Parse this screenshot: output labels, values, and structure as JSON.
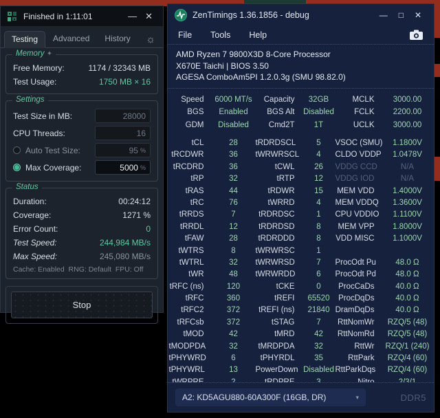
{
  "desktop": {
    "top_strip_color": "#932d1e",
    "accent_sliver_color": "#1c3b33"
  },
  "tm5": {
    "title": "Finished in 1:11:01",
    "controls": {
      "minimize": "—",
      "close": "✕"
    },
    "tabs": [
      "Testing",
      "Advanced",
      "History"
    ],
    "theme_icon": "☼",
    "memory": {
      "title": "Memory",
      "sparkle": "✦",
      "free_label": "Free Memory:",
      "free_value": "1174 / 32343 MB",
      "usage_label": "Test Usage:",
      "usage_value": "1750 MB × 16"
    },
    "settings": {
      "title": "Settings",
      "test_size_label": "Test Size in MB:",
      "test_size_value": "28000",
      "cpu_threads_label": "CPU Threads:",
      "cpu_threads_value": "16",
      "auto_label": "Auto Test Size:",
      "auto_value": "95",
      "auto_suffix": "%",
      "auto_selected": false,
      "max_label": "Max Coverage:",
      "max_value": "5000",
      "max_suffix": "%",
      "max_selected": true
    },
    "status": {
      "title": "Status",
      "duration_label": "Duration:",
      "duration_value": "00:24:12",
      "coverage_label": "Coverage:",
      "coverage_value": "1271 %",
      "errors_label": "Error Count:",
      "errors_value": "0",
      "test_speed_label": "Test Speed:",
      "test_speed_value": "244,984 MB/s",
      "max_speed_label": "Max Speed:",
      "max_speed_value": "245,080 MB/s",
      "footnote": "Cache: Enabled  RNG: Default  FPU: Off"
    },
    "stop_label": "Stop"
  },
  "zentimings": {
    "title": "ZenTimings 1.36.1856 - debug",
    "controls": {
      "minimize": "—",
      "maximize": "□",
      "close": "✕"
    },
    "menu": [
      "File",
      "Tools",
      "Help"
    ],
    "cpu_info": [
      "AMD Ryzen 7 9800X3D 8-Core Processor",
      "X670E Taichi | BIOS 3.50",
      "AGESA ComboAm5PI 1.2.0.3g (SMU 98.82.0)"
    ],
    "top_rows": [
      {
        "cells": [
          [
            "Speed",
            "6000 MT/s"
          ],
          [
            "Capacity",
            "32GB"
          ],
          [
            "MCLK",
            "3000.00"
          ]
        ]
      },
      {
        "cells": [
          [
            "BGS",
            "Enabled"
          ],
          [
            "BGS Alt",
            "Disabled"
          ],
          [
            "FCLK",
            "2200.00"
          ]
        ]
      },
      {
        "cells": [
          [
            "GDM",
            "Disabled"
          ],
          [
            "Cmd2T",
            "1T"
          ],
          [
            "UCLK",
            "3000.00"
          ]
        ]
      }
    ],
    "timing_rows": [
      {
        "cells": [
          [
            "tCL",
            "28"
          ],
          [
            "tRDRDSCL",
            "5"
          ],
          [
            "VSOC (SMU)",
            "1.1800V"
          ]
        ]
      },
      {
        "cells": [
          [
            "tRCDWR",
            "36"
          ],
          [
            "tWRWRSCL",
            "4"
          ],
          [
            "CLDO VDDP",
            "1.0478V"
          ]
        ]
      },
      {
        "cells": [
          [
            "tRCDRD",
            "36"
          ],
          [
            "tCWL",
            "26"
          ],
          [
            "VDDG CCD",
            "N/A",
            "dim"
          ]
        ]
      },
      {
        "cells": [
          [
            "tRP",
            "32"
          ],
          [
            "tRTP",
            "12"
          ],
          [
            "VDDG IOD",
            "N/A",
            "dim"
          ]
        ]
      },
      {
        "cells": [
          [
            "tRAS",
            "44"
          ],
          [
            "tRDWR",
            "15"
          ],
          [
            "MEM VDD",
            "1.4000V"
          ]
        ]
      },
      {
        "cells": [
          [
            "tRC",
            "76"
          ],
          [
            "tWRRD",
            "4"
          ],
          [
            "MEM VDDQ",
            "1.3600V"
          ]
        ]
      },
      {
        "cells": [
          [
            "tRRDS",
            "7"
          ],
          [
            "tRDRDSC",
            "1"
          ],
          [
            "CPU VDDIO",
            "1.1100V"
          ]
        ]
      },
      {
        "cells": [
          [
            "tRRDL",
            "12"
          ],
          [
            "tRDRDSD",
            "8"
          ],
          [
            "MEM VPP",
            "1.8000V"
          ]
        ]
      },
      {
        "cells": [
          [
            "tFAW",
            "28"
          ],
          [
            "tRDRDDD",
            "8"
          ],
          [
            "VDD MISC",
            "1.1000V"
          ]
        ]
      },
      {
        "cells": [
          [
            "tWTRS",
            "8"
          ],
          [
            "tWRWRSC",
            "1"
          ],
          [
            "",
            ""
          ]
        ]
      },
      {
        "cells": [
          [
            "tWTRL",
            "32"
          ],
          [
            "tWRWRSD",
            "7"
          ],
          [
            "ProcOdt Pu",
            "48.0 Ω"
          ]
        ]
      },
      {
        "cells": [
          [
            "tWR",
            "48"
          ],
          [
            "tWRWRDD",
            "6"
          ],
          [
            "ProcOdt Pd",
            "48.0 Ω"
          ]
        ]
      },
      {
        "cells": [
          [
            "tRFC (ns)",
            "120"
          ],
          [
            "tCKE",
            "0"
          ],
          [
            "ProcCaDs",
            "40.0 Ω"
          ]
        ]
      },
      {
        "cells": [
          [
            "tRFC",
            "360"
          ],
          [
            "tREFI",
            "65520"
          ],
          [
            "ProcDqDs",
            "40.0 Ω"
          ]
        ]
      },
      {
        "cells": [
          [
            "tRFC2",
            "372"
          ],
          [
            "tREFI (ns)",
            "21840"
          ],
          [
            "DramDqDs",
            "40.0 Ω"
          ]
        ]
      },
      {
        "cells": [
          [
            "tRFCsb",
            "372"
          ],
          [
            "tSTAG",
            "7"
          ],
          [
            "RttNomWr",
            "RZQ/5 (48)"
          ]
        ]
      },
      {
        "cells": [
          [
            "tMOD",
            "42"
          ],
          [
            "tMRD",
            "42"
          ],
          [
            "RttNomRd",
            "RZQ/5 (48)"
          ]
        ]
      },
      {
        "cells": [
          [
            "tMODPDA",
            "32"
          ],
          [
            "tMRDPDA",
            "32"
          ],
          [
            "RttWr",
            "RZQ/1 (240)"
          ]
        ]
      },
      {
        "cells": [
          [
            "tPHYWRD",
            "6"
          ],
          [
            "tPHYRDL",
            "35"
          ],
          [
            "RttPark",
            "RZQ/4 (60)"
          ]
        ]
      },
      {
        "cells": [
          [
            "tPHYWRL",
            "13"
          ],
          [
            "PowerDown",
            "Disabled"
          ],
          [
            "RttParkDqs",
            "RZQ/4 (60)"
          ]
        ]
      },
      {
        "cells": [
          [
            "tWRPRE",
            "2"
          ],
          [
            "tRDPRE",
            "3"
          ],
          [
            "Nitro",
            "2/3/1"
          ]
        ]
      }
    ],
    "bottom": {
      "dimm_selected": "A2: KD5AGU880-60A300F (16GB, DR)",
      "arrow": "▾",
      "memory_type": "DDR5"
    }
  }
}
